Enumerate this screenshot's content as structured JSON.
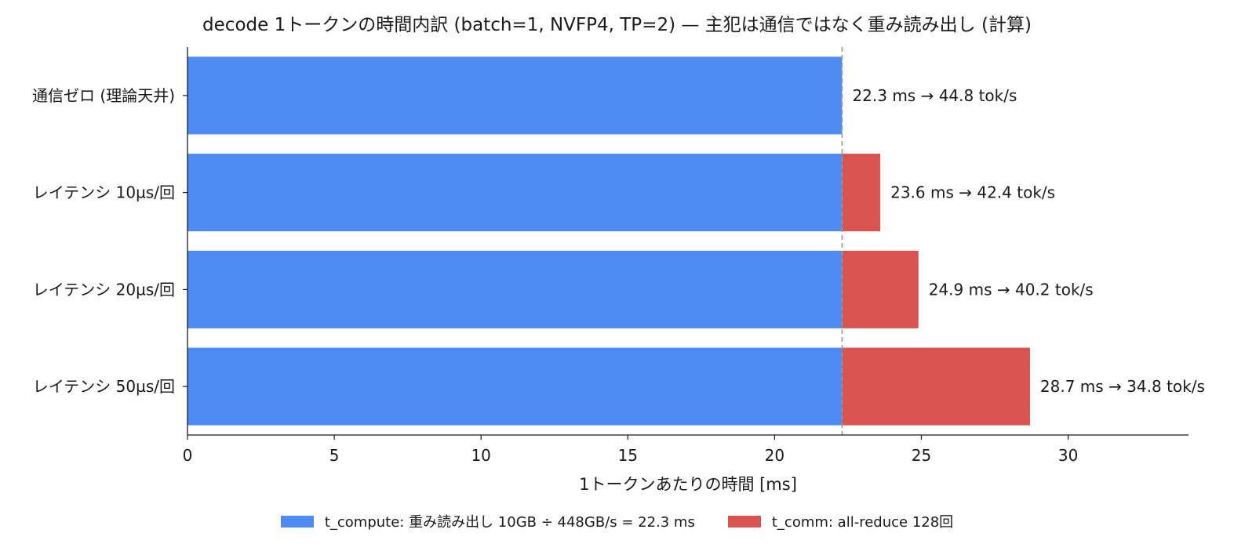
{
  "chart_data": {
    "type": "bar",
    "orientation": "horizontal",
    "stacked": true,
    "title": "decode 1トークンの時間内訳 (batch=1, NVFP4, TP=2) — 主犯は通信ではなく重み読み出し (計算)",
    "xlabel": "1トークンあたりの時間 [ms]",
    "ylabel": "",
    "xlim": [
      0,
      34.1
    ],
    "xticks": [
      0,
      5,
      10,
      15,
      20,
      25,
      30
    ],
    "grid": false,
    "legend_position": "bottom",
    "categories": [
      "通信ゼロ (理論天井)",
      "レイテンシ 10µs/回",
      "レイテンシ 20µs/回",
      "レイテンシ 50µs/回"
    ],
    "series": [
      {
        "name": "t_compute: 重み読み出し 10GB ÷ 448GB/s = 22.3 ms",
        "color": "#4e8cf4",
        "values": [
          22.3,
          22.3,
          22.3,
          22.3
        ]
      },
      {
        "name": "t_comm: all-reduce 128回",
        "color": "#d9534f",
        "values": [
          0,
          1.3,
          2.6,
          6.4
        ]
      }
    ],
    "data_labels": [
      "22.3 ms → 44.8 tok/s",
      "23.6 ms → 42.4 tok/s",
      "24.9 ms → 40.2 tok/s",
      "28.7 ms → 34.8 tok/s"
    ],
    "reference_line": {
      "x": 22.3,
      "style": "dashed",
      "color": "#999999"
    }
  }
}
